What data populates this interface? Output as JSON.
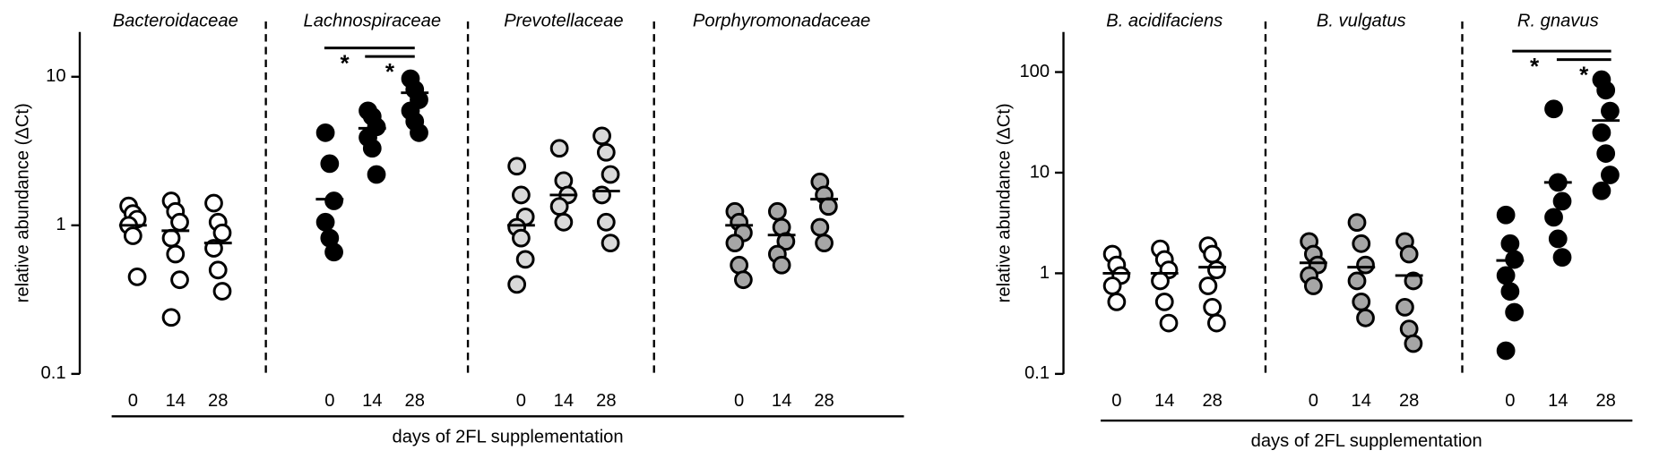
{
  "chart_data": [
    {
      "type": "dot",
      "log_scale": true,
      "ylabel": "relative abundance (ΔCt)",
      "xlabel": "days of 2FL supplementation",
      "ylim": [
        0.1,
        20
      ],
      "yticks": [
        0.1,
        1,
        10
      ],
      "groups": [
        {
          "name": "Bacteroidaceae",
          "color": "#ffffff",
          "categories": [
            "0",
            "14",
            "28"
          ],
          "points": [
            [
              1.35,
              1.2,
              1.1,
              1.0,
              0.85,
              0.45
            ],
            [
              1.46,
              1.24,
              1.05,
              0.82,
              0.64,
              0.43,
              0.24
            ],
            [
              1.41,
              1.05,
              0.89,
              0.7,
              0.5,
              0.36
            ]
          ],
          "means": [
            1.0,
            0.92,
            0.76
          ]
        },
        {
          "name": "Lachnospiraceae",
          "color": "#000000",
          "categories": [
            "0",
            "14",
            "28"
          ],
          "points": [
            [
              4.2,
              2.6,
              1.46,
              1.05,
              0.82,
              0.66
            ],
            [
              5.9,
              5.4,
              4.6,
              3.9,
              3.3,
              2.2
            ],
            [
              9.7,
              8.2,
              7.0,
              5.9,
              5.0,
              4.2
            ]
          ],
          "means": [
            1.5,
            4.5,
            7.8
          ],
          "significance": [
            "*",
            "*"
          ]
        },
        {
          "name": "Prevotellaceae",
          "color": "#d9d9d9",
          "categories": [
            "0",
            "14",
            "28"
          ],
          "points": [
            [
              2.5,
              1.6,
              1.14,
              0.97,
              0.82,
              0.59,
              0.4
            ],
            [
              3.3,
              2.0,
              1.6,
              1.34,
              1.05
            ],
            [
              4.0,
              3.1,
              2.2,
              1.6,
              1.05,
              0.76
            ]
          ],
          "means": [
            1.0,
            1.6,
            1.7
          ]
        },
        {
          "name": "Porphyromonadaceae",
          "color": "#a6a6a6",
          "categories": [
            "0",
            "14",
            "28"
          ],
          "points": [
            [
              1.24,
              1.05,
              0.89,
              0.76,
              0.54,
              0.43
            ],
            [
              1.24,
              0.97,
              0.78,
              0.64,
              0.54
            ],
            [
              1.96,
              1.6,
              1.34,
              0.97,
              0.76
            ]
          ],
          "means": [
            1.0,
            0.86,
            1.5
          ]
        }
      ]
    },
    {
      "type": "dot",
      "log_scale": true,
      "ylabel": "relative abundance (ΔCt)",
      "xlabel": "days of 2FL supplementation",
      "ylim": [
        0.1,
        250
      ],
      "yticks": [
        0.1,
        1,
        10,
        100
      ],
      "groups": [
        {
          "name": "B. acidifaciens",
          "color": "#ffffff",
          "categories": [
            "0",
            "14",
            "28"
          ],
          "points": [
            [
              1.55,
              1.21,
              0.95,
              0.75,
              0.52
            ],
            [
              1.75,
              1.37,
              1.08,
              0.84,
              0.52,
              0.32
            ],
            [
              1.88,
              1.55,
              1.08,
              0.75,
              0.46,
              0.32
            ]
          ],
          "means": [
            1.0,
            1.0,
            1.15
          ]
        },
        {
          "name": "B. vulgatus",
          "color": "#a6a6a6",
          "categories": [
            "0",
            "14",
            "28"
          ],
          "points": [
            [
              2.07,
              1.55,
              1.21,
              0.95,
              0.75
            ],
            [
              3.2,
              1.97,
              1.21,
              0.84,
              0.52,
              0.36
            ],
            [
              2.07,
              1.55,
              0.84,
              0.46,
              0.28,
              0.2
            ]
          ],
          "means": [
            1.27,
            1.15,
            0.95
          ]
        },
        {
          "name": "R. gnavus",
          "color": "#000000",
          "categories": [
            "0",
            "14",
            "28"
          ],
          "points": [
            [
              3.8,
              1.97,
              1.37,
              0.95,
              0.66,
              0.41,
              0.17
            ],
            [
              43,
              8.0,
              5.2,
              3.6,
              2.2,
              1.44
            ],
            [
              84,
              66,
              41,
              25,
              15.5,
              9.5,
              6.6
            ]
          ],
          "means": [
            1.34,
            8.0,
            33
          ],
          "significance": [
            "*",
            "*"
          ]
        }
      ]
    }
  ]
}
